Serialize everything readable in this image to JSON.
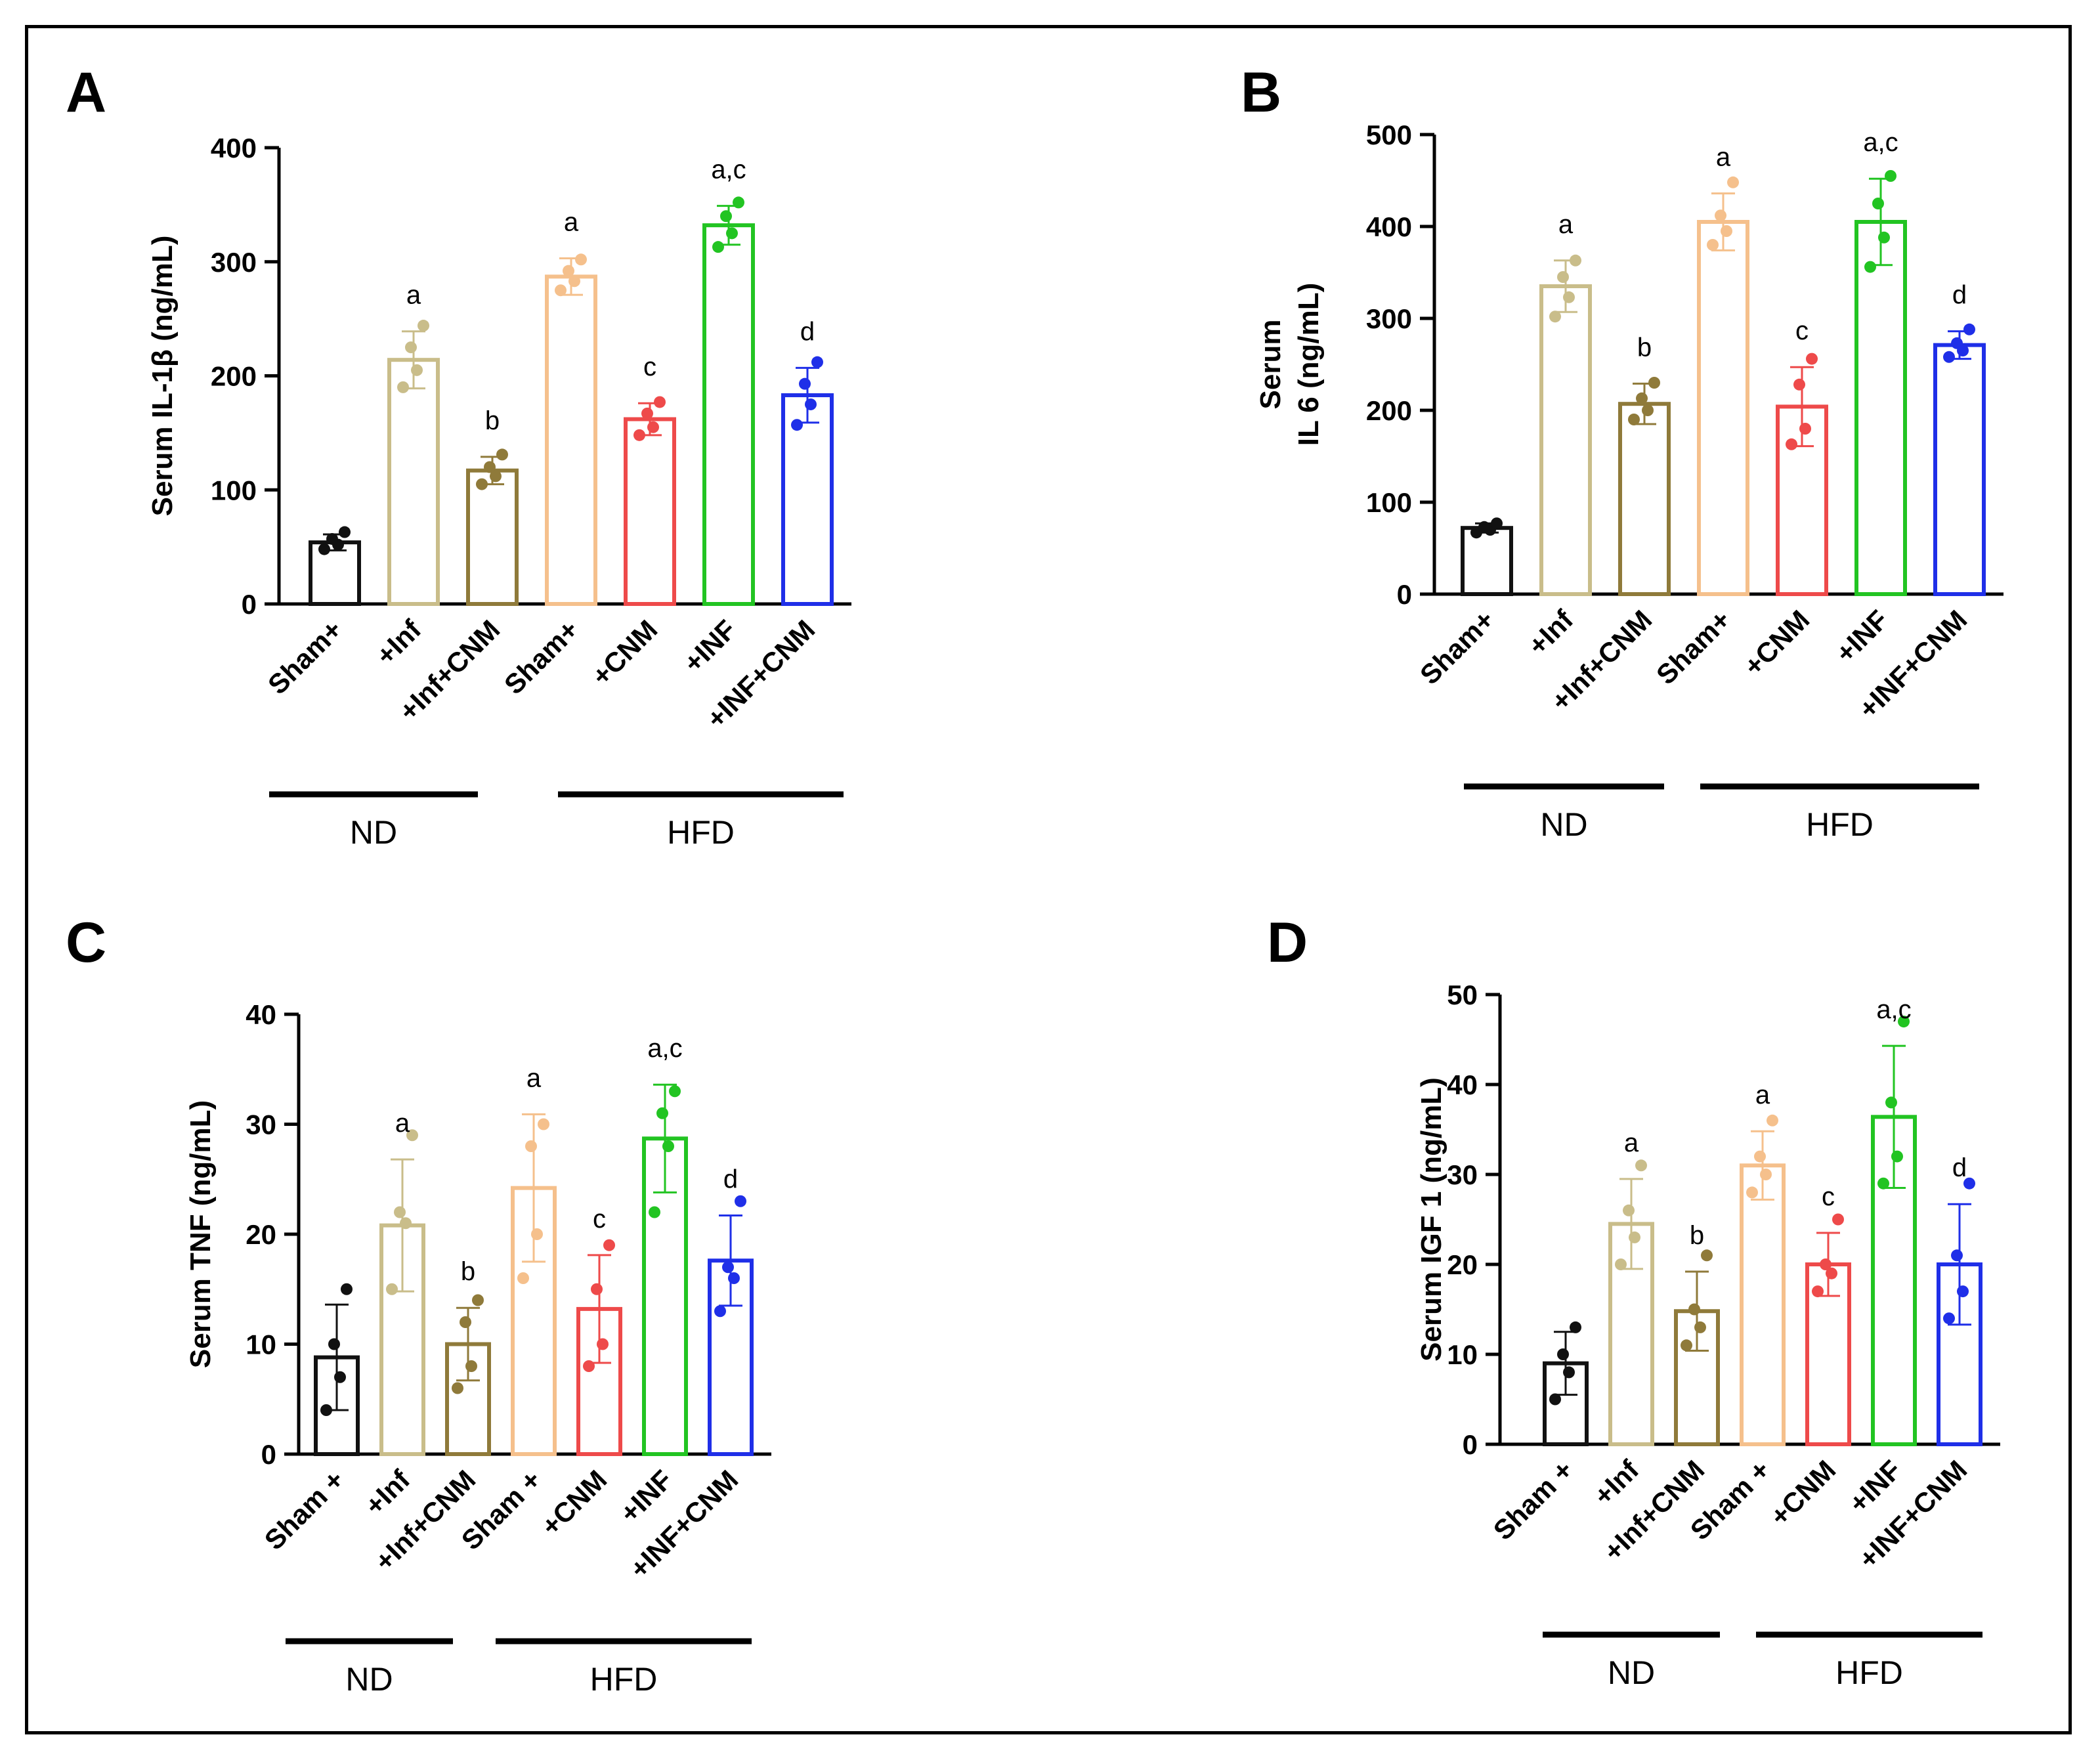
{
  "figure": {
    "colors": {
      "black": "#111111",
      "khaki": "#c9bd8a",
      "olive": "#8f7a3a",
      "peach": "#f5c08c",
      "red": "#ee4a4a",
      "green": "#22c422",
      "blue": "#1f2fe8"
    },
    "groups": [
      "ND",
      "HFD"
    ]
  },
  "chart_data": [
    {
      "panel": "A",
      "type": "bar",
      "ylabel": "Serum IL-1β (ng/mL)",
      "ylim": [
        0,
        400
      ],
      "yticks": [
        0,
        100,
        200,
        300,
        400
      ],
      "categories": [
        "Sham+",
        "+Inf",
        "+Inf+CNM",
        "Sham+",
        "+CNM",
        "+INF",
        "+INF+CNM"
      ],
      "values": [
        54,
        214,
        117,
        287,
        162,
        332,
        183
      ],
      "errors": [
        7,
        25,
        12,
        16,
        14,
        17,
        24
      ],
      "points": [
        [
          48,
          52,
          57,
          63
        ],
        [
          190,
          205,
          225,
          244
        ],
        [
          105,
          112,
          120,
          131
        ],
        [
          275,
          283,
          292,
          302
        ],
        [
          148,
          155,
          167,
          177
        ],
        [
          313,
          325,
          340,
          352
        ],
        [
          157,
          175,
          193,
          212
        ]
      ],
      "significance": [
        "",
        "a",
        "b",
        "a",
        "c",
        "a,c",
        "d"
      ],
      "groups": [
        {
          "label": "ND",
          "count": 3
        },
        {
          "label": "HFD",
          "count": 4
        }
      ]
    },
    {
      "panel": "B",
      "type": "bar",
      "ylabel_lines": [
        "Serum",
        "IL 6 (ng/mL)"
      ],
      "ylim": [
        0,
        500
      ],
      "yticks": [
        0,
        100,
        200,
        300,
        400,
        500
      ],
      "categories": [
        "Sham+",
        "+Inf",
        "+Inf+CNM",
        "Sham+",
        "+CNM",
        "+INF",
        "+INF+CNM"
      ],
      "values": [
        72,
        335,
        207,
        405,
        204,
        405,
        271
      ],
      "errors": [
        5,
        28,
        22,
        31,
        43,
        47,
        15
      ],
      "points": [
        [
          67,
          70,
          73,
          77
        ],
        [
          302,
          323,
          345,
          363
        ],
        [
          190,
          200,
          213,
          230
        ],
        [
          380,
          395,
          412,
          448
        ],
        [
          163,
          180,
          228,
          256
        ],
        [
          356,
          388,
          425,
          455
        ],
        [
          258,
          265,
          273,
          288
        ]
      ],
      "significance": [
        "",
        "a",
        "b",
        "a",
        "c",
        "a,c",
        "d"
      ],
      "groups": [
        {
          "label": "ND",
          "count": 3
        },
        {
          "label": "HFD",
          "count": 4
        }
      ]
    },
    {
      "panel": "C",
      "type": "bar",
      "ylabel": "Serum TNF (ng/mL)",
      "ylim": [
        0,
        40
      ],
      "yticks": [
        0,
        10,
        20,
        30,
        40
      ],
      "categories": [
        "Sham +",
        "+Inf",
        "+Inf+CNM",
        "Sham +",
        "+CNM",
        "+INF",
        "+INF+CNM"
      ],
      "values": [
        8.8,
        20.8,
        10,
        24.2,
        13.2,
        28.7,
        17.6
      ],
      "errors": [
        4.8,
        6,
        3.3,
        6.7,
        4.9,
        4.9,
        4.1
      ],
      "points": [
        [
          4,
          7,
          10,
          15
        ],
        [
          15,
          21,
          22,
          29
        ],
        [
          6,
          8,
          12,
          14
        ],
        [
          16,
          20,
          28,
          30
        ],
        [
          8,
          10,
          15,
          19
        ],
        [
          22,
          28,
          31,
          33
        ],
        [
          13,
          16,
          17,
          23
        ]
      ],
      "significance": [
        "",
        "a",
        "b",
        "a",
        "c",
        "a,c",
        "d"
      ],
      "groups": [
        {
          "label": "ND",
          "count": 3
        },
        {
          "label": "HFD",
          "count": 4
        }
      ]
    },
    {
      "panel": "D",
      "type": "bar",
      "ylabel": "Serum IGF 1 (ng/mL)",
      "ylim": [
        0,
        50
      ],
      "yticks": [
        0,
        10,
        20,
        30,
        40,
        50
      ],
      "categories": [
        "Sham +",
        "+Inf",
        "+Inf+CNM",
        "Sham +",
        "+CNM",
        "+INF",
        "+INF+CNM"
      ],
      "values": [
        9,
        24.5,
        14.8,
        31,
        20,
        36.4,
        20
      ],
      "errors": [
        3.5,
        5,
        4.4,
        3.8,
        3.5,
        7.9,
        6.7
      ],
      "points": [
        [
          5,
          8,
          10,
          13
        ],
        [
          20,
          23,
          26,
          31
        ],
        [
          11,
          13,
          15,
          21
        ],
        [
          28,
          30,
          32,
          36
        ],
        [
          17,
          19,
          20,
          25
        ],
        [
          29,
          32,
          38,
          47
        ],
        [
          14,
          17,
          21,
          29
        ]
      ],
      "significance": [
        "",
        "a",
        "b",
        "a",
        "c",
        "a,c",
        "d"
      ],
      "groups": [
        {
          "label": "ND",
          "count": 3
        },
        {
          "label": "HFD",
          "count": 4
        }
      ]
    }
  ]
}
